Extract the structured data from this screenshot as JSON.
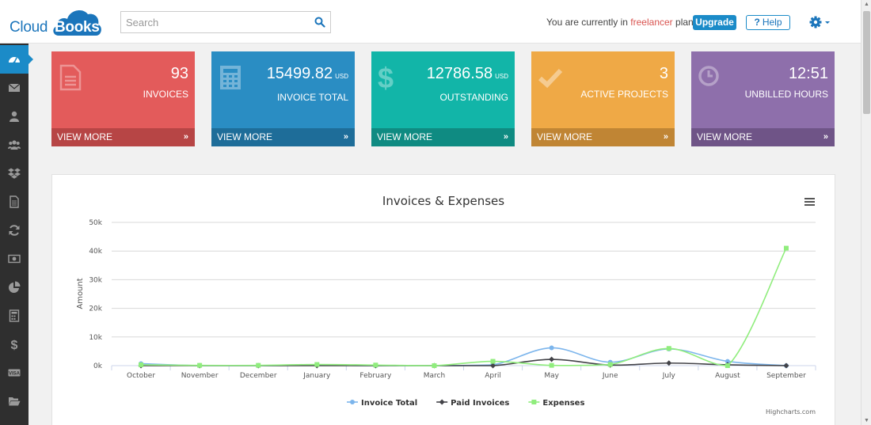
{
  "app": {
    "logo_text_1": "Cloud",
    "logo_text_2": "Books"
  },
  "search": {
    "placeholder": "Search"
  },
  "header": {
    "plan_prefix": "You are currently in",
    "plan_name": "freelancer",
    "plan_suffix": "plan.",
    "upgrade_label": "Upgrade",
    "help_label": "Help"
  },
  "sidebar": {
    "items": [
      {
        "icon": "dashboard-icon",
        "active": true
      },
      {
        "icon": "envelope-icon"
      },
      {
        "icon": "user-icon"
      },
      {
        "icon": "users-icon"
      },
      {
        "icon": "dropbox-icon"
      },
      {
        "icon": "document-icon"
      },
      {
        "icon": "refresh-icon"
      },
      {
        "icon": "money-icon"
      },
      {
        "icon": "pie-chart-icon"
      },
      {
        "icon": "calculator-icon"
      },
      {
        "icon": "dollar-icon"
      },
      {
        "icon": "visa-card-icon"
      },
      {
        "icon": "folder-open-icon"
      }
    ]
  },
  "tiles": [
    {
      "value": "93",
      "unit": "",
      "label": "INVOICES",
      "footer": "VIEW MORE",
      "color": "#e35b5b"
    },
    {
      "value": "15499.82",
      "unit": "USD",
      "label": "INVOICE TOTAL",
      "footer": "VIEW MORE",
      "color": "#2a8dc3"
    },
    {
      "value": "12786.58",
      "unit": "USD",
      "label": "OUTSTANDING",
      "footer": "VIEW MORE",
      "color": "#12b5a8"
    },
    {
      "value": "3",
      "unit": "",
      "label": "ACTIVE PROJECTS",
      "footer": "VIEW MORE",
      "color": "#efa946"
    },
    {
      "value": "12:51",
      "unit": "",
      "label": "UNBILLED HOURS",
      "footer": "VIEW MORE",
      "color": "#8e6fab"
    }
  ],
  "chart_data": {
    "type": "line",
    "title": "Invoices & Expenses",
    "ylabel": "Amount",
    "xlabel": "",
    "categories": [
      "October",
      "November",
      "December",
      "January",
      "February",
      "March",
      "April",
      "May",
      "June",
      "July",
      "August",
      "September"
    ],
    "ylim": [
      0,
      50000
    ],
    "yticks": [
      "0k",
      "10k",
      "20k",
      "30k",
      "40k",
      "50k"
    ],
    "grid": true,
    "legend_position": "bottom-center",
    "series": [
      {
        "name": "Invoice Total",
        "color": "#7cb5ec",
        "marker": "circle",
        "values": [
          700,
          0,
          0,
          200,
          0,
          0,
          300,
          6200,
          1200,
          5800,
          1500,
          0
        ]
      },
      {
        "name": "Paid Invoices",
        "color": "#434348",
        "marker": "diamond",
        "values": [
          0,
          0,
          0,
          0,
          0,
          0,
          0,
          2200,
          200,
          900,
          300,
          0
        ]
      },
      {
        "name": "Expenses",
        "color": "#90ed7d",
        "marker": "square",
        "values": [
          300,
          100,
          100,
          400,
          200,
          0,
          1500,
          100,
          400,
          6000,
          0,
          41000
        ]
      }
    ],
    "credit": "Highcharts.com"
  }
}
